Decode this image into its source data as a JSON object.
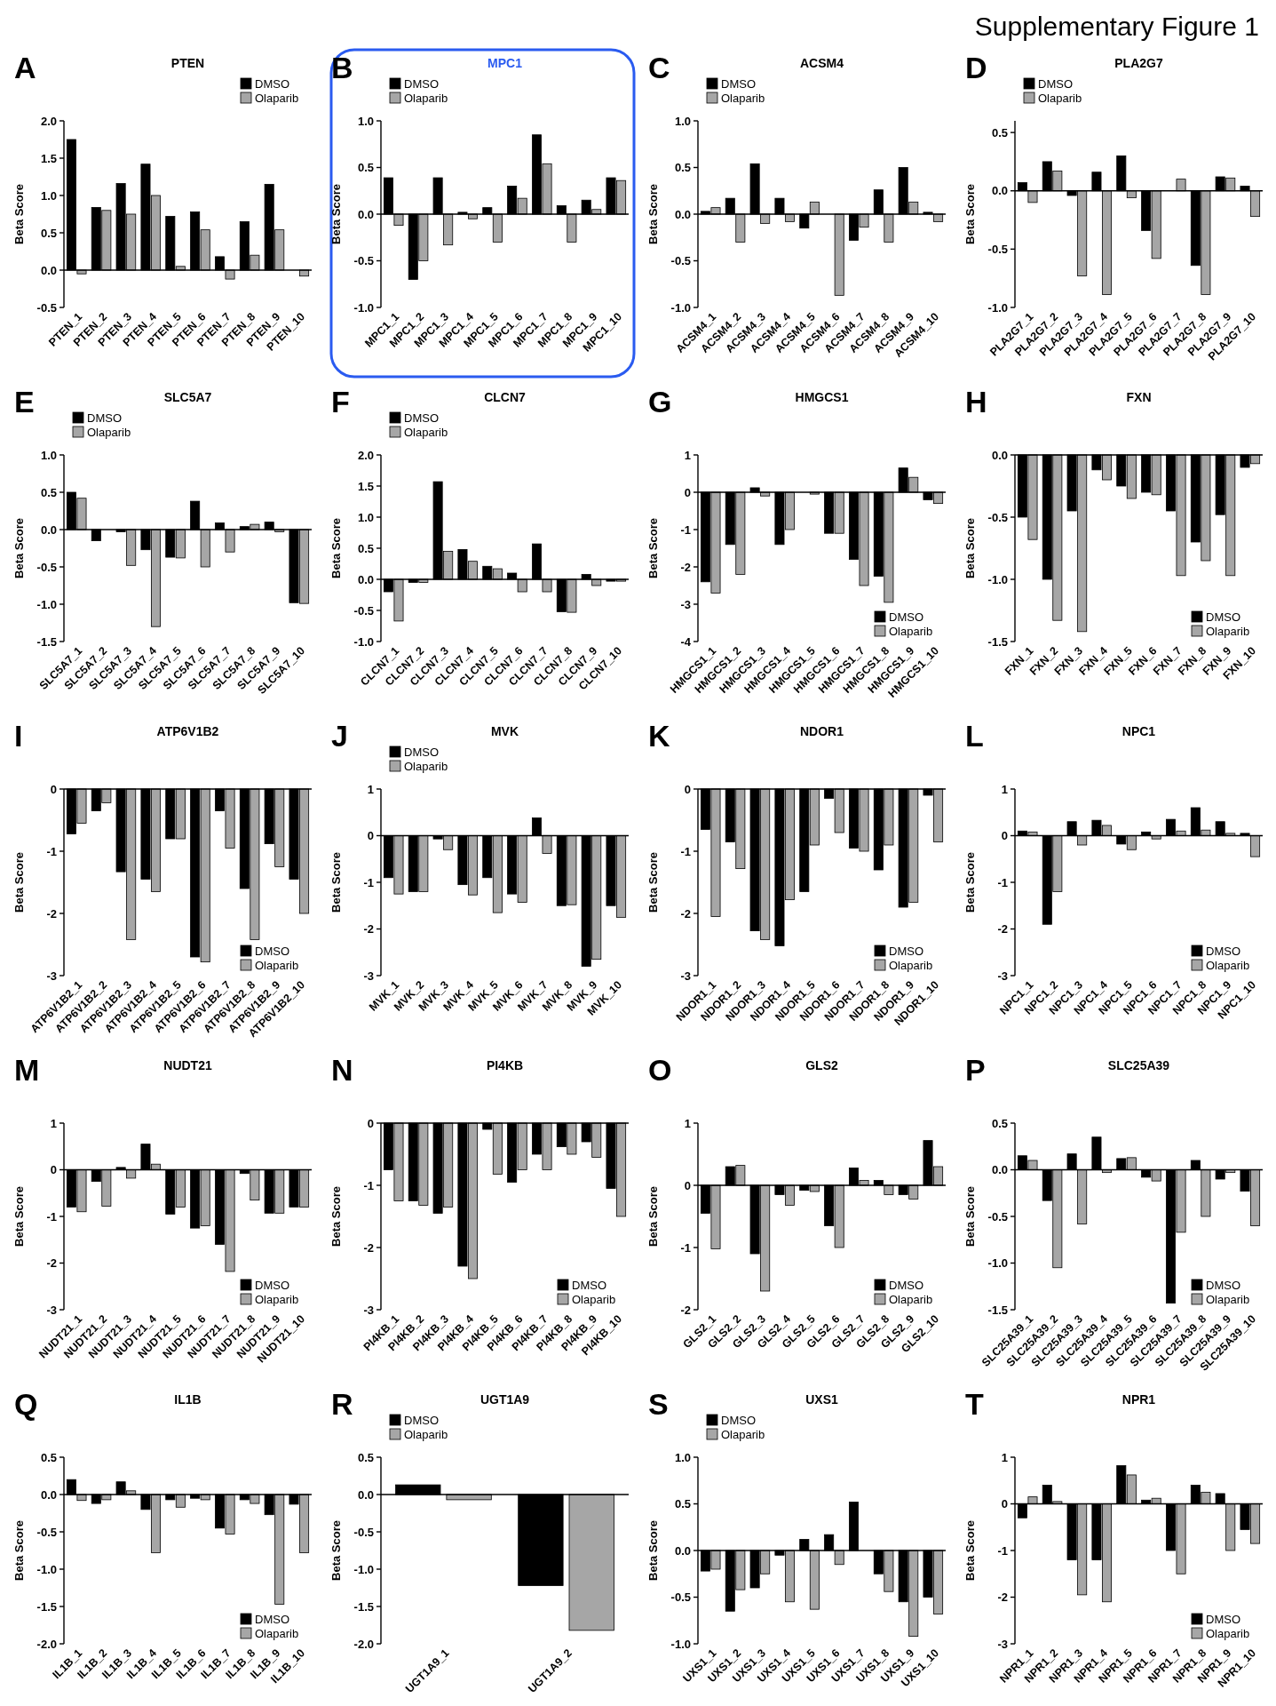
{
  "chart_data": [
    {
      "type": "bar",
      "title": "PTEN",
      "ylabel": "Beta Score",
      "annotations": [
        "A",
        "Supplementary Figure 1"
      ],
      "legend": "top right",
      "categories": [
        "PTEN_1",
        "PTEN_2",
        "PTEN_3",
        "PTEN_4",
        "PTEN_5",
        "PTEN_6",
        "PTEN_7",
        "PTEN_8",
        "PTEN_9",
        "PTEN_10"
      ],
      "ylim": [
        -0.5,
        2.0
      ],
      "yticks": [
        {
          "value": -0.5,
          "label": "-0.5"
        },
        {
          "value": 0,
          "label": "0.0"
        },
        {
          "value": 0.5,
          "label": "0.5"
        },
        {
          "value": 1,
          "label": "1.0"
        },
        {
          "value": 1.5,
          "label": "1.5"
        },
        {
          "value": 2,
          "label": "2.0"
        }
      ],
      "series": [
        {
          "name": "DMSO",
          "color": "#000000",
          "values": [
            1.75,
            0.84,
            1.16,
            1.42,
            0.72,
            0.78,
            0.18,
            0.65,
            1.15,
            0.0
          ]
        },
        {
          "name": "Olaparib",
          "color": "#a6a6a6",
          "values": [
            -0.05,
            0.8,
            0.75,
            1.0,
            0.05,
            0.54,
            -0.12,
            0.2,
            0.54,
            -0.08
          ]
        }
      ]
    },
    {
      "type": "bar",
      "title": "MPC1",
      "ylabel": "Beta Score",
      "annotations": [
        "B"
      ],
      "legend": "top left",
      "categories": [
        "MPC1_1",
        "MPC1_2",
        "MPC1_3",
        "MPC1_4",
        "MPC1_5",
        "MPC1_6",
        "MPC1_7",
        "MPC1_8",
        "MPC1_9",
        "MPC1_10"
      ],
      "ylim": [
        -1,
        1
      ],
      "yticks": [
        {
          "value": -1,
          "label": "-1.0"
        },
        {
          "value": -0.5,
          "label": "-0.5"
        },
        {
          "value": 0,
          "label": "0.0"
        },
        {
          "value": 0.5,
          "label": "0.5"
        },
        {
          "value": 1,
          "label": "1.0"
        }
      ],
      "series": [
        {
          "name": "DMSO",
          "color": "#000000",
          "values": [
            0.39,
            -0.7,
            0.39,
            0.02,
            0.07,
            0.3,
            0.85,
            0.09,
            0.15,
            0.39
          ]
        },
        {
          "name": "Olaparib",
          "color": "#a6a6a6",
          "values": [
            -0.12,
            -0.5,
            -0.33,
            -0.05,
            -0.3,
            0.17,
            0.54,
            -0.3,
            0.05,
            0.36
          ]
        }
      ]
    },
    {
      "type": "bar",
      "title": "ACSM4",
      "ylabel": "Beta Score",
      "annotations": [
        "C"
      ],
      "legend": "top left",
      "categories": [
        "ACSM4_1",
        "ACSM4_2",
        "ACSM4_3",
        "ACSM4_4",
        "ACSM4_5",
        "ACSM4_6",
        "ACSM4_7",
        "ACSM4_8",
        "ACSM4_9",
        "ACSM4_10"
      ],
      "ylim": [
        -1,
        1
      ],
      "yticks": [
        {
          "value": -1,
          "label": "-1.0"
        },
        {
          "value": -0.5,
          "label": "-0.5"
        },
        {
          "value": 0,
          "label": "0.0"
        },
        {
          "value": 0.5,
          "label": "0.5"
        },
        {
          "value": 1,
          "label": "1.0"
        }
      ],
      "series": [
        {
          "name": "DMSO",
          "color": "#000000",
          "values": [
            0.03,
            0.17,
            0.54,
            0.17,
            -0.15,
            0.0,
            -0.28,
            0.26,
            0.5,
            0.02
          ]
        },
        {
          "name": "Olaparib",
          "color": "#a6a6a6",
          "values": [
            0.07,
            -0.3,
            -0.1,
            -0.08,
            0.13,
            -0.87,
            -0.14,
            -0.3,
            0.13,
            -0.08
          ]
        }
      ]
    },
    {
      "type": "bar",
      "title": "PLA2G7",
      "ylabel": "Beta Score",
      "annotations": [
        "D"
      ],
      "legend": "top left",
      "categories": [
        "PLA2G7_1",
        "PLA2G7_2",
        "PLA2G7_3",
        "PLA2G7_4",
        "PLA2G7_5",
        "PLA2G7_6",
        "PLA2G7_7",
        "PLA2G7_8",
        "PLA2G7_9",
        "PLA2G7_10"
      ],
      "ylim": [
        -1,
        0.6
      ],
      "yticks": [
        {
          "value": -1,
          "label": "-1.0"
        },
        {
          "value": -0.5,
          "label": "-0.5"
        },
        {
          "value": 0,
          "label": "0.0"
        },
        {
          "value": 0.5,
          "label": "0.5"
        }
      ],
      "series": [
        {
          "name": "DMSO",
          "color": "#000000",
          "values": [
            0.07,
            0.25,
            -0.04,
            0.16,
            0.3,
            -0.34,
            0.0,
            -0.64,
            0.12,
            0.04
          ]
        },
        {
          "name": "Olaparib",
          "color": "#a6a6a6",
          "values": [
            -0.1,
            0.17,
            -0.73,
            -0.89,
            -0.06,
            -0.58,
            0.1,
            -0.89,
            0.11,
            -0.22
          ]
        }
      ]
    },
    {
      "type": "bar",
      "title": "SLC5A7",
      "ylabel": "Beta Score",
      "annotations": [
        "E"
      ],
      "legend": "top left",
      "categories": [
        "SLC5A7_1",
        "SLC5A7_2",
        "SLC5A7_3",
        "SLC5A7_4",
        "SLC5A7_5",
        "SLC5A7_6",
        "SLC5A7_7",
        "SLC5A7_8",
        "SLC5A7_9",
        "SLC5A7_10"
      ],
      "ylim": [
        -1.5,
        1
      ],
      "yticks": [
        {
          "value": -1.5,
          "label": "-1.5"
        },
        {
          "value": -1,
          "label": "-1.0"
        },
        {
          "value": -0.5,
          "label": "-0.5"
        },
        {
          "value": 0,
          "label": "0.0"
        },
        {
          "value": 0.5,
          "label": "0.5"
        },
        {
          "value": 1,
          "label": "1.0"
        }
      ],
      "series": [
        {
          "name": "DMSO",
          "color": "#000000",
          "values": [
            0.5,
            -0.15,
            -0.03,
            -0.27,
            -0.37,
            0.38,
            0.09,
            0.04,
            0.1,
            -0.98
          ]
        },
        {
          "name": "Olaparib",
          "color": "#a6a6a6",
          "values": [
            0.42,
            0.0,
            -0.48,
            -1.3,
            -0.38,
            -0.5,
            -0.3,
            0.07,
            -0.03,
            -0.99
          ]
        }
      ]
    },
    {
      "type": "bar",
      "title": "CLCN7",
      "ylabel": "Beta Score",
      "annotations": [
        "F"
      ],
      "legend": "top left",
      "categories": [
        "CLCN7_1",
        "CLCN7_2",
        "CLCN7_3",
        "CLCN7_4",
        "CLCN7_5",
        "CLCN7_6",
        "CLCN7_7",
        "CLCN7_8",
        "CLCN7_9",
        "CLCN7_10"
      ],
      "ylim": [
        -1,
        2
      ],
      "yticks": [
        {
          "value": -1,
          "label": "-1.0"
        },
        {
          "value": -0.5,
          "label": "-0.5"
        },
        {
          "value": 0,
          "label": "0.0"
        },
        {
          "value": 0.5,
          "label": "0.5"
        },
        {
          "value": 1,
          "label": "1.0"
        },
        {
          "value": 1.5,
          "label": "1.5"
        },
        {
          "value": 2,
          "label": "2.0"
        }
      ],
      "series": [
        {
          "name": "DMSO",
          "color": "#000000",
          "values": [
            -0.2,
            -0.05,
            1.57,
            0.48,
            0.21,
            0.1,
            0.57,
            -0.52,
            0.08,
            -0.03
          ]
        },
        {
          "name": "Olaparib",
          "color": "#a6a6a6",
          "values": [
            -0.67,
            -0.05,
            0.45,
            0.29,
            0.17,
            -0.2,
            -0.2,
            -0.53,
            -0.1,
            -0.03
          ]
        }
      ]
    },
    {
      "type": "bar",
      "title": "HMGCS1",
      "ylabel": "Beta Score",
      "annotations": [
        "G"
      ],
      "legend": "bottom right",
      "categories": [
        "HMGCS1_1",
        "HMGCS1_2",
        "HMGCS1_3",
        "HMGCS1_4",
        "HMGCS1_5",
        "HMGCS1_6",
        "HMGCS1_7",
        "HMGCS1_8",
        "HMGCS1_9",
        "HMGCS1_10"
      ],
      "ylim": [
        -4,
        1
      ],
      "yticks": [
        -4,
        -3,
        -2,
        -1,
        0,
        1
      ],
      "series": [
        {
          "name": "DMSO",
          "color": "#000000",
          "values": [
            -2.4,
            -1.4,
            0.12,
            -1.4,
            0.0,
            -1.1,
            -1.8,
            -2.25,
            0.65,
            -0.2
          ]
        },
        {
          "name": "Olaparib",
          "color": "#a6a6a6",
          "values": [
            -2.7,
            -2.2,
            -0.1,
            -1.0,
            -0.05,
            -1.1,
            -2.5,
            -2.95,
            0.4,
            -0.3
          ]
        }
      ]
    },
    {
      "type": "bar",
      "title": "FXN",
      "ylabel": "Beta Score",
      "annotations": [
        "H"
      ],
      "legend": "bottom right",
      "categories": [
        "FXN_1",
        "FXN_2",
        "FXN_3",
        "FXN_4",
        "FXN_5",
        "FXN_6",
        "FXN_7",
        "FXN_8",
        "FXN_9",
        "FXN_10"
      ],
      "ylim": [
        -1.5,
        0
      ],
      "yticks": [
        {
          "value": -1.5,
          "label": "-1.5"
        },
        {
          "value": -1,
          "label": "-1.0"
        },
        {
          "value": -0.5,
          "label": "-0.5"
        },
        {
          "value": 0,
          "label": "0.0"
        }
      ],
      "series": [
        {
          "name": "DMSO",
          "color": "#000000",
          "values": [
            -0.5,
            -1.0,
            -0.45,
            -0.12,
            -0.25,
            -0.3,
            -0.45,
            -0.7,
            -0.48,
            -0.1
          ]
        },
        {
          "name": "Olaparib",
          "color": "#a6a6a6",
          "values": [
            -0.68,
            -1.33,
            -1.42,
            -0.2,
            -0.35,
            -0.32,
            -0.97,
            -0.85,
            -0.97,
            -0.07
          ]
        }
      ]
    },
    {
      "type": "bar",
      "title": "ATP6V1B2",
      "ylabel": "Beta Score",
      "annotations": [
        "I"
      ],
      "legend": "bottom right",
      "categories": [
        "ATP6V1B2_1",
        "ATP6V1B2_2",
        "ATP6V1B2_3",
        "ATP6V1B2_4",
        "ATP6V1B2_5",
        "ATP6V1B2_6",
        "ATP6V1B2_7",
        "ATP6V1B2_8",
        "ATP6V1B2_9",
        "ATP6V1B2_10"
      ],
      "ylim": [
        -3,
        0
      ],
      "yticks": [
        -3,
        -2,
        -1,
        0
      ],
      "series": [
        {
          "name": "DMSO",
          "color": "#000000",
          "values": [
            -0.72,
            -0.35,
            -1.33,
            -1.45,
            -0.8,
            -2.7,
            -0.35,
            -1.6,
            -0.88,
            -1.45
          ]
        },
        {
          "name": "Olaparib",
          "color": "#a6a6a6",
          "values": [
            -0.55,
            -0.22,
            -2.42,
            -1.65,
            -0.8,
            -2.78,
            -0.95,
            -2.42,
            -1.25,
            -2.0
          ]
        }
      ]
    },
    {
      "type": "bar",
      "title": "MVK",
      "ylabel": "Beta Score",
      "annotations": [
        "J"
      ],
      "legend": "top left",
      "categories": [
        "MVK_1",
        "MVK_2",
        "MVK_3",
        "MVK_4",
        "MVK_5",
        "MVK_6",
        "MVK_7",
        "MVK_8",
        "MVK_9",
        "MVK_10"
      ],
      "ylim": [
        -3,
        1
      ],
      "yticks": [
        -3,
        -2,
        -1,
        0,
        1
      ],
      "series": [
        {
          "name": "DMSO",
          "color": "#000000",
          "values": [
            -0.9,
            -1.2,
            -0.07,
            -1.05,
            -0.9,
            -1.25,
            0.38,
            -1.5,
            -2.8,
            -1.5
          ]
        },
        {
          "name": "Olaparib",
          "color": "#a6a6a6",
          "values": [
            -1.25,
            -1.2,
            -0.3,
            -1.27,
            -1.65,
            -1.43,
            -0.38,
            -1.48,
            -2.65,
            -1.75
          ]
        }
      ]
    },
    {
      "type": "bar",
      "title": "NDOR1",
      "ylabel": "Beta Score",
      "annotations": [
        "K"
      ],
      "legend": "bottom right",
      "categories": [
        "NDOR1_1",
        "NDOR1_2",
        "NDOR1_3",
        "NDOR1_4",
        "NDOR1_5",
        "NDOR1_6",
        "NDOR1_7",
        "NDOR1_8",
        "NDOR1_9",
        "NDOR1_10"
      ],
      "ylim": [
        -3,
        0
      ],
      "yticks": [
        -3,
        -2,
        -1,
        0
      ],
      "series": [
        {
          "name": "DMSO",
          "color": "#000000",
          "values": [
            -0.65,
            -0.85,
            -2.28,
            -2.52,
            -1.65,
            -0.15,
            -0.95,
            -1.3,
            -1.9,
            -0.1
          ]
        },
        {
          "name": "Olaparib",
          "color": "#a6a6a6",
          "values": [
            -2.05,
            -1.28,
            -2.42,
            -1.78,
            -0.9,
            -0.7,
            -1.0,
            -0.9,
            -1.82,
            -0.85
          ]
        }
      ]
    },
    {
      "type": "bar",
      "title": "NPC1",
      "ylabel": "Beta Score",
      "annotations": [
        "L"
      ],
      "legend": "bottom right",
      "categories": [
        "NPC1_1",
        "NPC1_2",
        "NPC1_3",
        "NPC1_4",
        "NPC1_5",
        "NPC1_6",
        "NPC1_7",
        "NPC1_8",
        "NPC1_9",
        "NPC1_10"
      ],
      "ylim": [
        -3,
        1
      ],
      "yticks": [
        -3,
        -2,
        -1,
        0,
        1
      ],
      "series": [
        {
          "name": "DMSO",
          "color": "#000000",
          "values": [
            0.1,
            -1.9,
            0.3,
            0.33,
            -0.18,
            0.08,
            0.35,
            0.6,
            0.3,
            0.05
          ]
        },
        {
          "name": "Olaparib",
          "color": "#a6a6a6",
          "values": [
            0.08,
            -1.2,
            -0.2,
            0.22,
            -0.3,
            -0.07,
            0.1,
            0.12,
            0.05,
            -0.45
          ]
        }
      ]
    },
    {
      "type": "bar",
      "title": "NUDT21",
      "ylabel": "Beta Score",
      "annotations": [
        "M"
      ],
      "legend": "bottom right",
      "categories": [
        "NUDT21_1",
        "NUDT21_2",
        "NUDT21_3",
        "NUDT21_4",
        "NUDT21_5",
        "NUDT21_6",
        "NUDT21_7",
        "NUDT21_8",
        "NUDT21_9",
        "NUDT21_10"
      ],
      "ylim": [
        -3,
        1
      ],
      "yticks": [
        -3,
        -2,
        -1,
        0,
        1
      ],
      "series": [
        {
          "name": "DMSO",
          "color": "#000000",
          "values": [
            -0.8,
            -0.25,
            0.05,
            0.55,
            -0.95,
            -1.25,
            -1.6,
            -0.08,
            -0.93,
            -0.8
          ]
        },
        {
          "name": "Olaparib",
          "color": "#a6a6a6",
          "values": [
            -0.9,
            -0.78,
            -0.18,
            0.12,
            -0.8,
            -1.2,
            -2.18,
            -0.65,
            -0.93,
            -0.8
          ]
        }
      ]
    },
    {
      "type": "bar",
      "title": "PI4KB",
      "ylabel": "Beta Score",
      "annotations": [
        "N"
      ],
      "legend": "bottom right",
      "categories": [
        "PI4KB_1",
        "PI4KB_2",
        "PI4KB_3",
        "PI4KB_4",
        "PI4KB_5",
        "PI4KB_6",
        "PI4KB_7",
        "PI4KB_8",
        "PI4KB_9",
        "PI4KB_10"
      ],
      "ylim": [
        -3,
        0
      ],
      "yticks": [
        -3,
        -2,
        -1,
        0
      ],
      "series": [
        {
          "name": "DMSO",
          "color": "#000000",
          "values": [
            -0.75,
            -1.25,
            -1.45,
            -2.3,
            -0.1,
            -0.95,
            -0.5,
            -0.38,
            -0.3,
            -1.05
          ]
        },
        {
          "name": "Olaparib",
          "color": "#a6a6a6",
          "values": [
            -1.25,
            -1.32,
            -1.35,
            -2.5,
            -0.82,
            -0.75,
            -0.75,
            -0.5,
            -0.55,
            -1.5
          ]
        }
      ]
    },
    {
      "type": "bar",
      "title": "GLS2",
      "ylabel": "Beta Score",
      "annotations": [
        "O"
      ],
      "legend": "bottom right",
      "categories": [
        "GLS2_1",
        "GLS2_2",
        "GLS2_3",
        "GLS2_4",
        "GLS2_5",
        "GLS2_6",
        "GLS2_7",
        "GLS2_8",
        "GLS2_9",
        "GLS2_10"
      ],
      "ylim": [
        -2,
        1
      ],
      "yticks": [
        -2,
        -1,
        0,
        1
      ],
      "series": [
        {
          "name": "DMSO",
          "color": "#000000",
          "values": [
            -0.45,
            0.3,
            -1.1,
            -0.15,
            -0.08,
            -0.65,
            0.28,
            0.08,
            -0.15,
            0.72
          ]
        },
        {
          "name": "Olaparib",
          "color": "#a6a6a6",
          "values": [
            -1.02,
            0.32,
            -1.7,
            -0.32,
            -0.1,
            -1.0,
            0.08,
            -0.15,
            -0.22,
            0.3
          ]
        }
      ]
    },
    {
      "type": "bar",
      "title": "SLC25A39",
      "ylabel": "Beta Score",
      "annotations": [
        "P"
      ],
      "legend": "bottom right",
      "categories": [
        "SLC25A39_1",
        "SLC25A39_2",
        "SLC25A39_3",
        "SLC25A39_4",
        "SLC25A39_5",
        "SLC25A39_6",
        "SLC25A39_7",
        "SLC25A39_8",
        "SLC25A39_9",
        "SLC25A39_10"
      ],
      "ylim": [
        -1.5,
        0.5
      ],
      "yticks": [
        {
          "value": -1.5,
          "label": "-1.5"
        },
        {
          "value": -1,
          "label": "-1.0"
        },
        {
          "value": -0.5,
          "label": "-0.5"
        },
        {
          "value": 0,
          "label": "0.0"
        },
        {
          "value": 0.5,
          "label": "0.5"
        }
      ],
      "series": [
        {
          "name": "DMSO",
          "color": "#000000",
          "values": [
            0.15,
            -0.33,
            0.17,
            0.35,
            0.12,
            -0.08,
            -1.43,
            0.1,
            -0.1,
            -0.23
          ]
        },
        {
          "name": "Olaparib",
          "color": "#a6a6a6",
          "values": [
            0.1,
            -1.05,
            -0.58,
            -0.03,
            0.13,
            -0.12,
            -0.67,
            -0.5,
            -0.03,
            -0.6
          ]
        }
      ]
    },
    {
      "type": "bar",
      "title": "IL1B",
      "ylabel": "Beta Score",
      "annotations": [
        "Q"
      ],
      "legend": "bottom right",
      "categories": [
        "IL1B_1",
        "IL1B_2",
        "IL1B_3",
        "IL1B_4",
        "IL1B_5",
        "IL1B_6",
        "IL1B_7",
        "IL1B_8",
        "IL1B_9",
        "IL1B_10"
      ],
      "ylim": [
        -2,
        0.5
      ],
      "yticks": [
        {
          "value": -2,
          "label": "-2.0"
        },
        {
          "value": -1.5,
          "label": "-1.5"
        },
        {
          "value": -1,
          "label": "-1.0"
        },
        {
          "value": -0.5,
          "label": "-0.5"
        },
        {
          "value": 0,
          "label": "0.0"
        },
        {
          "value": 0.5,
          "label": "0.5"
        }
      ],
      "series": [
        {
          "name": "DMSO",
          "color": "#000000",
          "values": [
            0.2,
            -0.12,
            0.17,
            -0.2,
            -0.07,
            -0.05,
            -0.45,
            -0.07,
            -0.27,
            -0.13
          ]
        },
        {
          "name": "Olaparib",
          "color": "#a6a6a6",
          "values": [
            -0.08,
            -0.07,
            0.05,
            -0.78,
            -0.17,
            -0.07,
            -0.53,
            -0.12,
            -1.47,
            -0.78
          ]
        }
      ]
    },
    {
      "type": "bar",
      "title": "UGT1A9",
      "ylabel": "Beta Score",
      "annotations": [
        "R"
      ],
      "legend": "top left",
      "categories": [
        "UGT1A9_1",
        "UGT1A9_2"
      ],
      "ylim": [
        -2,
        0.5
      ],
      "yticks": [
        {
          "value": -2,
          "label": "-2.0"
        },
        {
          "value": -1.5,
          "label": "-1.5"
        },
        {
          "value": -1,
          "label": "-1.0"
        },
        {
          "value": -0.5,
          "label": "-0.5"
        },
        {
          "value": 0,
          "label": "0.0"
        },
        {
          "value": 0.5,
          "label": "0.5"
        }
      ],
      "series": [
        {
          "name": "DMSO",
          "color": "#000000",
          "values": [
            0.13,
            -1.22
          ]
        },
        {
          "name": "Olaparib",
          "color": "#a6a6a6",
          "values": [
            -0.07,
            -1.82
          ]
        }
      ]
    },
    {
      "type": "bar",
      "title": "UXS1",
      "ylabel": "Beta Score",
      "annotations": [
        "S"
      ],
      "legend": "top left",
      "categories": [
        "UXS1_1",
        "UXS1_2",
        "UXS1_3",
        "UXS1_4",
        "UXS1_5",
        "UXS1_6",
        "UXS1_7",
        "UXS1_8",
        "UXS1_9",
        "UXS1_10"
      ],
      "ylim": [
        -1,
        1
      ],
      "yticks": [
        {
          "value": -1,
          "label": "-1.0"
        },
        {
          "value": -0.5,
          "label": "-0.5"
        },
        {
          "value": 0,
          "label": "0.0"
        },
        {
          "value": 0.5,
          "label": "0.5"
        },
        {
          "value": 1,
          "label": "1.0"
        }
      ],
      "series": [
        {
          "name": "DMSO",
          "color": "#000000",
          "values": [
            -0.22,
            -0.65,
            -0.4,
            -0.05,
            0.12,
            0.17,
            0.52,
            -0.25,
            -0.55,
            -0.5
          ]
        },
        {
          "name": "Olaparib",
          "color": "#a6a6a6",
          "values": [
            -0.2,
            -0.42,
            -0.25,
            -0.55,
            -0.63,
            -0.15,
            0.0,
            -0.44,
            -0.92,
            -0.68
          ]
        }
      ]
    },
    {
      "type": "bar",
      "title": "NPR1",
      "ylabel": "Beta Score",
      "annotations": [
        "T"
      ],
      "legend": "bottom right",
      "categories": [
        "NPR1_1",
        "NPR1_2",
        "NPR1_3",
        "NPR1_4",
        "NPR1_5",
        "NPR1_6",
        "NPR1_7",
        "NPR1_8",
        "NPR1_9",
        "NPR1_10"
      ],
      "ylim": [
        -3,
        1
      ],
      "yticks": [
        -3,
        -2,
        -1,
        0,
        1
      ],
      "series": [
        {
          "name": "DMSO",
          "color": "#000000",
          "values": [
            -0.3,
            0.4,
            -1.2,
            -1.2,
            0.82,
            0.08,
            -1.0,
            0.4,
            0.22,
            -0.55
          ]
        },
        {
          "name": "Olaparib",
          "color": "#a6a6a6",
          "values": [
            0.15,
            0.05,
            -1.95,
            -2.1,
            0.62,
            0.12,
            -1.5,
            0.25,
            -1.0,
            -0.85
          ]
        }
      ]
    }
  ]
}
